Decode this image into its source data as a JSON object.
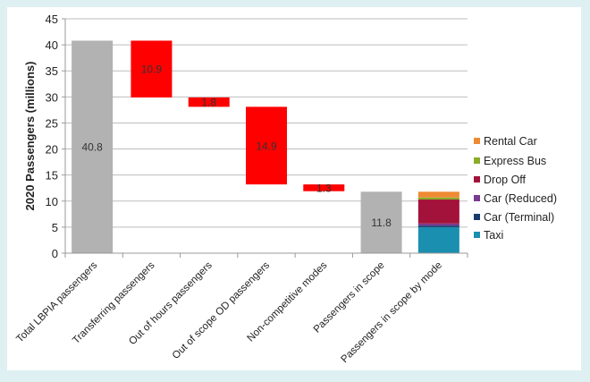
{
  "chart_data": {
    "type": "waterfall",
    "ylabel": "2020 Passengers  (millions)",
    "ylim": [
      0,
      45
    ],
    "yticks": [
      0,
      5,
      10,
      15,
      20,
      25,
      30,
      35,
      40,
      45
    ],
    "grid": true,
    "categories": [
      "Total LBPIA passengers",
      "Transferring passengers",
      "Out of hours passengers",
      "Out of scope OD passengers",
      "Non-competitive modes",
      "Passengers in scope",
      "Passengers in scope by mode"
    ],
    "bars": [
      {
        "kind": "total",
        "start": 0,
        "end": 40.8,
        "label": "40.8",
        "color": "#b2b2b2"
      },
      {
        "kind": "decrease",
        "start": 40.8,
        "end": 29.9,
        "label": "10.9",
        "color": "#ff0000"
      },
      {
        "kind": "decrease",
        "start": 29.9,
        "end": 28.1,
        "label": "1.8",
        "color": "#ff0000"
      },
      {
        "kind": "decrease",
        "start": 28.1,
        "end": 13.2,
        "label": "14.9",
        "color": "#ff0000"
      },
      {
        "kind": "decrease",
        "start": 13.2,
        "end": 11.9,
        "label": "1.3",
        "color": "#ff0000"
      },
      {
        "kind": "total",
        "start": 0,
        "end": 11.8,
        "label": "11.8",
        "color": "#b2b2b2"
      },
      {
        "kind": "stack"
      }
    ],
    "stack_series": [
      {
        "name": "Taxi",
        "value": 5.0,
        "color": "#1b8fb0"
      },
      {
        "name": "Car (Terminal)",
        "value": 0.3,
        "color": "#1a3a6b"
      },
      {
        "name": "Car (Reduced)",
        "value": 0.4,
        "color": "#7a3b8f"
      },
      {
        "name": "Drop Off",
        "value": 4.6,
        "color": "#a3123a"
      },
      {
        "name": "Express Bus",
        "value": 0.4,
        "color": "#8aac2a"
      },
      {
        "name": "Rental Car",
        "value": 1.1,
        "color": "#ef8a33"
      }
    ],
    "legend_position": "right"
  }
}
